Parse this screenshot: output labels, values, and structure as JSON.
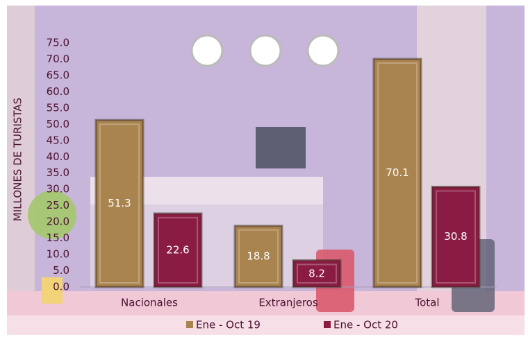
{
  "chart_data": {
    "type": "bar",
    "y_label": "MILLONES DE TURISTAS",
    "categories": [
      "Nacionales",
      "Extranjeros",
      "Total"
    ],
    "series": [
      {
        "name": "Ene - Oct 19",
        "color": "#a9844f",
        "values": [
          51.3,
          18.8,
          70.1
        ]
      },
      {
        "name": "Ene - Oct 20",
        "color": "#8a1c44",
        "values": [
          22.6,
          8.2,
          30.8
        ]
      }
    ],
    "ylim": [
      0,
      75
    ],
    "yticks": [
      {
        "value": 0,
        "label": "0.0"
      },
      {
        "value": 5,
        "label": "5.0"
      },
      {
        "value": 10,
        "label": "10.0"
      },
      {
        "value": 15,
        "label": "15.0"
      },
      {
        "value": 20,
        "label": "20.0"
      },
      {
        "value": 25,
        "label": "25.0"
      },
      {
        "value": 30,
        "label": "30.0"
      },
      {
        "value": 35,
        "label": "35.0"
      },
      {
        "value": 40,
        "label": "40.0"
      },
      {
        "value": 45,
        "label": "45.0"
      },
      {
        "value": 50,
        "label": "50.0"
      },
      {
        "value": 55,
        "label": "55.0"
      },
      {
        "value": 60,
        "label": "60.0"
      },
      {
        "value": 65,
        "label": "65.0"
      },
      {
        "value": 70,
        "label": "70.0"
      },
      {
        "value": 75,
        "label": "75.0"
      }
    ],
    "grid": false
  }
}
